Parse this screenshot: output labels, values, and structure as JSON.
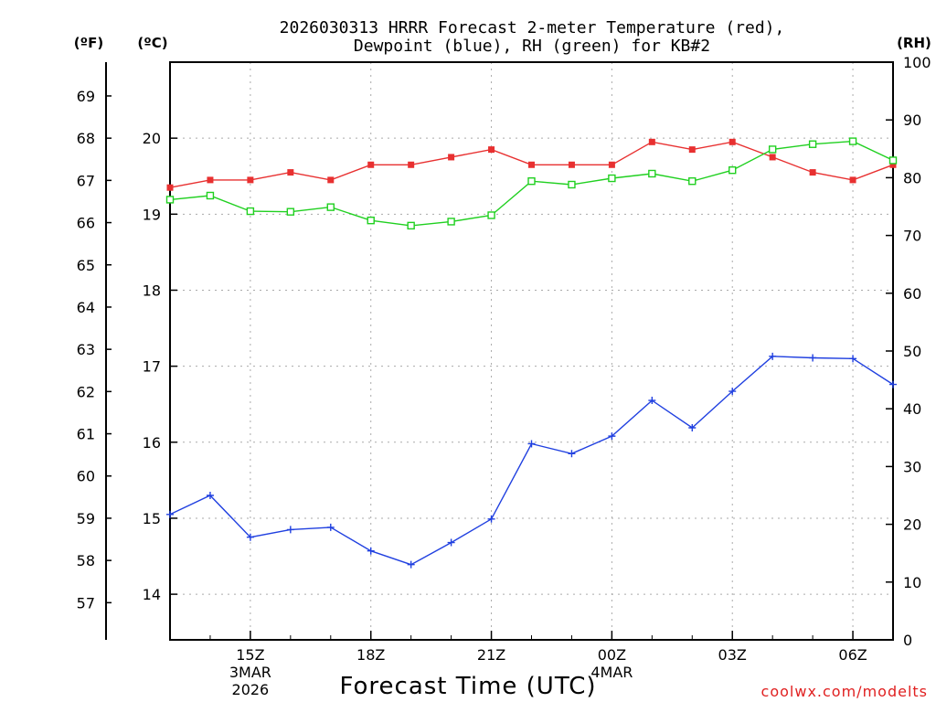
{
  "chart_data": {
    "type": "line",
    "title_line1": "2026030313 HRRR Forecast 2-meter Temperature (red),",
    "title_line2": "Dewpoint (blue), RH (green) for KB#2",
    "xlabel": "Forecast Time (UTC)",
    "unit_f": "(ºF)",
    "unit_c": "(ºC)",
    "unit_rh": "(RH)",
    "watermark": "coolwx.com/modelts",
    "x_hours": [
      13,
      14,
      15,
      16,
      17,
      18,
      19,
      20,
      21,
      22,
      23,
      24,
      25,
      26,
      27,
      28,
      29,
      30,
      31
    ],
    "x_range": [
      13,
      31
    ],
    "x_ticks": [
      {
        "hour": 15,
        "label": "15Z",
        "sub1": "3MAR",
        "sub2": "2026"
      },
      {
        "hour": 18,
        "label": "18Z",
        "sub1": "",
        "sub2": ""
      },
      {
        "hour": 21,
        "label": "21Z",
        "sub1": "",
        "sub2": ""
      },
      {
        "hour": 24,
        "label": "00Z",
        "sub1": "4MAR",
        "sub2": ""
      },
      {
        "hour": 27,
        "label": "03Z",
        "sub1": "",
        "sub2": ""
      },
      {
        "hour": 30,
        "label": "06Z",
        "sub1": "",
        "sub2": ""
      }
    ],
    "c_range": [
      13.4,
      21.0
    ],
    "c_ticks": [
      14,
      15,
      16,
      17,
      18,
      19,
      20
    ],
    "f_ticks": [
      57,
      58,
      59,
      60,
      61,
      62,
      63,
      64,
      65,
      66,
      67,
      68,
      69
    ],
    "rh_range": [
      0,
      100
    ],
    "rh_ticks": [
      0,
      10,
      20,
      30,
      40,
      50,
      60,
      70,
      80,
      90,
      100
    ],
    "series": [
      {
        "name": "Temperature",
        "axis": "C",
        "color": "#e83030",
        "marker": "filled-square",
        "values": [
          19.35,
          19.45,
          19.45,
          19.55,
          19.45,
          19.65,
          19.65,
          19.75,
          19.85,
          19.65,
          19.65,
          19.65,
          19.95,
          19.85,
          19.95,
          19.75,
          19.55,
          19.45,
          19.65
        ]
      },
      {
        "name": "Dewpoint",
        "axis": "C",
        "color": "#2040e0",
        "marker": "plus",
        "values": [
          15.05,
          15.3,
          14.75,
          14.85,
          14.88,
          14.57,
          14.39,
          14.68,
          14.99,
          15.98,
          15.85,
          16.08,
          16.55,
          16.19,
          16.67,
          17.13,
          17.11,
          17.1,
          16.76
        ]
      },
      {
        "name": "RH",
        "axis": "RH",
        "color": "#20d020",
        "marker": "open-square",
        "values": [
          76.2,
          76.9,
          74.2,
          74.1,
          74.9,
          72.6,
          71.7,
          72.4,
          73.5,
          79.4,
          78.8,
          79.9,
          80.7,
          79.4,
          81.3,
          84.9,
          85.8,
          86.3,
          83.0
        ]
      }
    ]
  }
}
